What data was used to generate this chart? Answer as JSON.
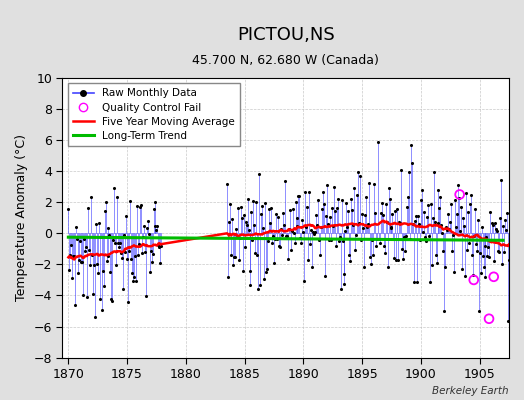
{
  "title": "PICTOU,NS",
  "subtitle": "45.700 N, 62.680 W (Canada)",
  "ylabel": "Temperature Anomaly (°C)",
  "credit": "Berkeley Earth",
  "xlim": [
    1869.5,
    1907.5
  ],
  "ylim": [
    -8,
    10
  ],
  "yticks": [
    -8,
    -6,
    -4,
    -2,
    0,
    2,
    4,
    6,
    8,
    10
  ],
  "xticks": [
    1870,
    1875,
    1880,
    1885,
    1890,
    1895,
    1900,
    1905
  ],
  "bg_color": "#e0e0e0",
  "plot_bg_color": "#ffffff",
  "raw_color": "#4444ff",
  "raw_marker_color": "#000000",
  "qc_color": "#ff00ff",
  "moving_avg_color": "#ff0000",
  "trend_color": "#00bb00",
  "seed": 7,
  "start_year": 1870,
  "end_year": 1907
}
